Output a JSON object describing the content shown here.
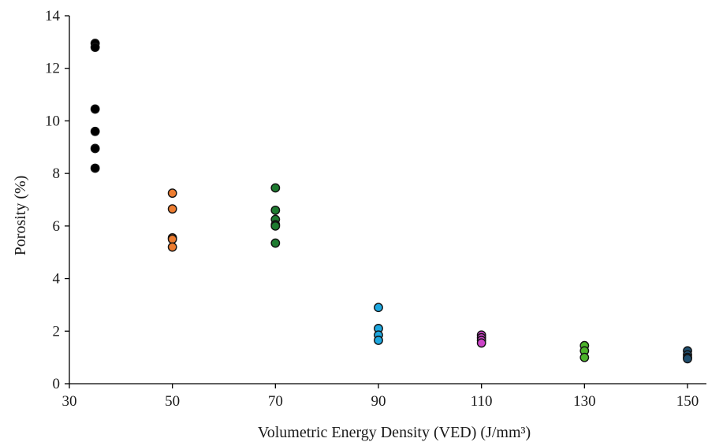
{
  "chart_data": {
    "type": "scatter",
    "title": "",
    "xlabel": "Volumetric Energy Density (VED) (J/mm³)",
    "ylabel": "Porosity (%)",
    "xlim": [
      30,
      150
    ],
    "ylim": [
      0,
      14
    ],
    "xticks": [
      30,
      50,
      70,
      90,
      110,
      130,
      150
    ],
    "yticks": [
      0,
      2,
      4,
      6,
      8,
      10,
      12,
      14
    ],
    "grid": false,
    "legend": "none",
    "series": [
      {
        "color": "#000000",
        "x": [
          35,
          35,
          35,
          35,
          35,
          35
        ],
        "y": [
          12.95,
          12.8,
          10.45,
          9.6,
          8.95,
          8.2
        ]
      },
      {
        "color": "#ED7D31",
        "x": [
          50,
          50,
          50,
          50,
          50
        ],
        "y": [
          7.25,
          6.65,
          5.55,
          5.5,
          5.2
        ]
      },
      {
        "color": "#1E7B30",
        "x": [
          70,
          70,
          70,
          70,
          70,
          70
        ],
        "y": [
          7.45,
          6.6,
          6.25,
          6.05,
          6.0,
          5.35
        ]
      },
      {
        "color": "#1EA8E0",
        "x": [
          90,
          90,
          90,
          90
        ],
        "y": [
          2.9,
          2.1,
          1.85,
          1.65
        ]
      },
      {
        "color": "#CC44C8",
        "x": [
          110,
          110,
          110,
          110
        ],
        "y": [
          1.85,
          1.75,
          1.65,
          1.55
        ]
      },
      {
        "color": "#4CB32B",
        "x": [
          130,
          130,
          130
        ],
        "y": [
          1.45,
          1.25,
          1.0
        ]
      },
      {
        "color": "#1F4E6E",
        "x": [
          150,
          150,
          150,
          150
        ],
        "y": [
          1.25,
          1.1,
          1.0,
          0.95
        ]
      }
    ]
  }
}
